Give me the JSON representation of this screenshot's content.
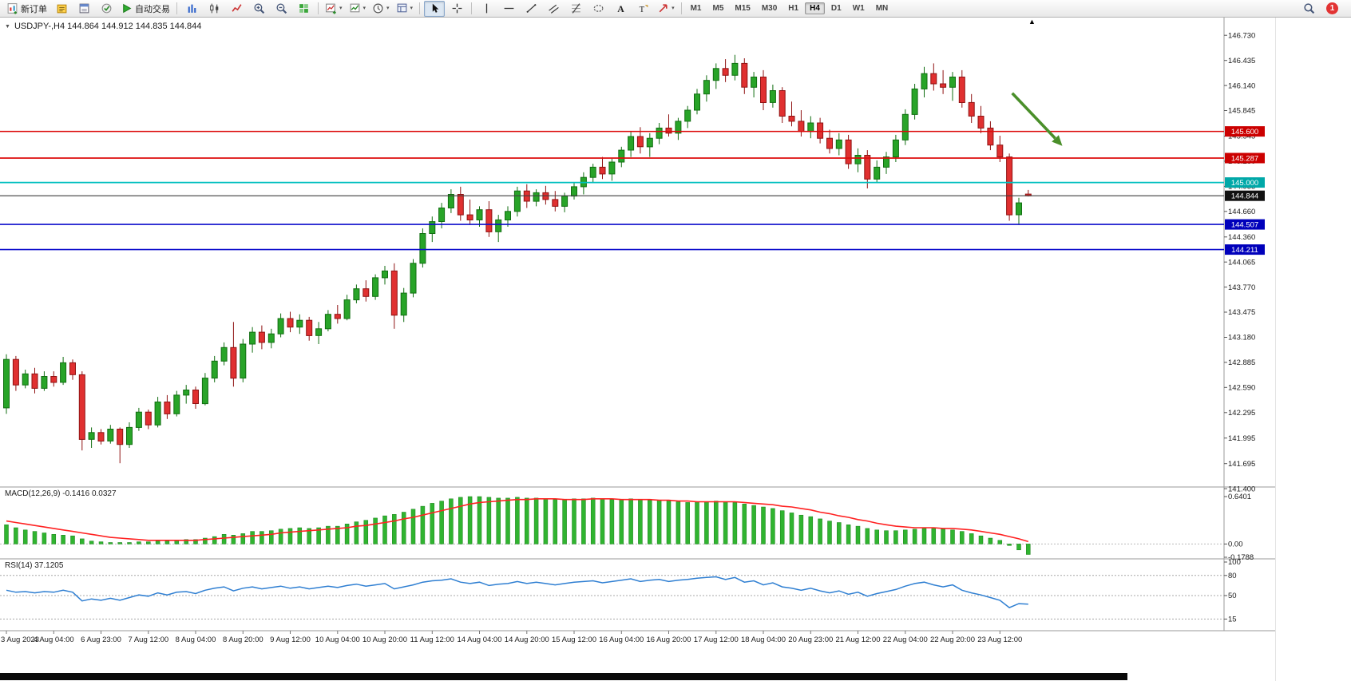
{
  "icons": {
    "collapse": "▼",
    "shift": "▲",
    "caret": "▾"
  },
  "toolbar": {
    "notification_count": "1",
    "groups": [
      {
        "buttons": [
          {
            "icon": "new-order-icon",
            "label": "新订单",
            "name": "new-order-button"
          },
          {
            "icon": "market-watch-icon",
            "name": "market-watch-button"
          },
          {
            "icon": "data-window-icon",
            "name": "data-window-button"
          },
          {
            "icon": "terminal-icon",
            "name": "terminal-button"
          },
          {
            "icon": "autotrade-icon",
            "label": "自动交易",
            "name": "autotrade-button"
          }
        ]
      },
      {
        "buttons": [
          {
            "icon": "bar-chart-icon",
            "name": "bar-chart-button"
          },
          {
            "icon": "candlestick-icon",
            "name": "candlestick-button"
          },
          {
            "icon": "line-chart-icon",
            "name": "line-chart-button"
          },
          {
            "icon": "zoom-in-icon",
            "name": "zoom-in-button"
          },
          {
            "icon": "zoom-out-icon",
            "name": "zoom-out-button"
          },
          {
            "icon": "tile-windows-icon",
            "name": "tile-windows-button"
          }
        ]
      },
      {
        "buttons": [
          {
            "icon": "new-chart-icon",
            "name": "new-chart-button",
            "dropdown": true
          },
          {
            "icon": "indicators-icon",
            "name": "indicators-button",
            "dropdown": true
          },
          {
            "icon": "periods-icon",
            "name": "periods-button",
            "dropdown": true
          },
          {
            "icon": "templates-icon",
            "name": "templates-button",
            "dropdown": true
          }
        ]
      },
      {
        "buttons": [
          {
            "icon": "cursor-icon",
            "name": "cursor-button",
            "active": true
          },
          {
            "icon": "crosshair-icon",
            "name": "crosshair-button"
          }
        ]
      },
      {
        "buttons": [
          {
            "icon": "vertical-line-icon",
            "name": "vertical-line-button"
          },
          {
            "icon": "horizontal-line-icon",
            "name": "horizontal-line-button"
          },
          {
            "icon": "trendline-icon",
            "name": "trendline-button"
          },
          {
            "icon": "channel-icon",
            "name": "equidistant-channel-button"
          },
          {
            "icon": "fibonacci-icon",
            "name": "fibonacci-button"
          },
          {
            "icon": "shapes-icon",
            "name": "shapes-button"
          },
          {
            "icon": "text-icon",
            "name": "text-button"
          },
          {
            "icon": "label-icon",
            "name": "text-label-button"
          },
          {
            "icon": "arrows-icon",
            "name": "arrows-button",
            "dropdown": true
          }
        ]
      },
      {
        "timeframes": [
          "M1",
          "M5",
          "M15",
          "M30",
          "H1",
          "H4",
          "D1",
          "W1",
          "MN"
        ],
        "active": "H4"
      }
    ]
  },
  "chart": {
    "title": "USDJPY-,H4 144.864 144.912 144.835 144.844"
  },
  "chart_data": {
    "type": "candlestick",
    "symbol": "USDJPY-",
    "period": "H4",
    "current_candle": {
      "open": 144.864,
      "high": 144.912,
      "low": 144.835,
      "close": 144.844
    },
    "price_axis_ticks": [
      "146.730",
      "146.435",
      "146.140",
      "145.845",
      "145.545",
      "145.250",
      "144.955",
      "144.660",
      "144.360",
      "144.065",
      "143.770",
      "143.475",
      "143.180",
      "142.885",
      "142.590",
      "142.295",
      "141.995",
      "141.695",
      "141.400"
    ],
    "hlines": [
      {
        "price": 145.6,
        "label": "145.600",
        "color": "#dd0b0b",
        "badge": "#cc0000",
        "w": 1.5
      },
      {
        "price": 145.287,
        "label": "145.287",
        "color": "#dd0b0b",
        "badge": "#cc0000",
        "w": 1.8
      },
      {
        "price": 145.0,
        "label": "145.000",
        "color": "#00bfbf",
        "badge": "#00a8a8",
        "w": 1.8
      },
      {
        "price": 144.844,
        "label": "144.844",
        "color": "#3c3c3c",
        "badge": "#111111",
        "w": 1.1
      },
      {
        "price": 144.507,
        "label": "144.507",
        "color": "#0d0dcc",
        "badge": "#0000bb",
        "w": 1.6
      },
      {
        "price": 144.211,
        "label": "144.211",
        "color": "#0d0dcc",
        "badge": "#0000bb",
        "w": 1.6
      }
    ],
    "x_labels": [
      "3 Aug 2023",
      "4 Aug 04:00",
      "6 Aug 23:00",
      "7 Aug 12:00",
      "8 Aug 04:00",
      "8 Aug 20:00",
      "9 Aug 12:00",
      "10 Aug 04:00",
      "10 Aug 20:00",
      "11 Aug 12:00",
      "14 Aug 04:00",
      "14 Aug 20:00",
      "15 Aug 12:00",
      "16 Aug 04:00",
      "16 Aug 20:00",
      "17 Aug 12:00",
      "18 Aug 04:00",
      "20 Aug 23:00",
      "21 Aug 12:00",
      "22 Aug 04:00",
      "22 Aug 20:00",
      "23 Aug 12:00"
    ],
    "x_label_every": 5,
    "candles": [
      [
        142.35,
        142.98,
        142.28,
        142.92
      ],
      [
        142.92,
        142.96,
        142.55,
        142.62
      ],
      [
        142.62,
        142.8,
        142.58,
        142.75
      ],
      [
        142.75,
        142.82,
        142.52,
        142.58
      ],
      [
        142.58,
        142.78,
        142.55,
        142.72
      ],
      [
        142.72,
        142.78,
        142.6,
        142.65
      ],
      [
        142.65,
        142.95,
        142.62,
        142.88
      ],
      [
        142.88,
        142.92,
        142.68,
        142.74
      ],
      [
        142.74,
        142.78,
        141.85,
        141.98
      ],
      [
        141.98,
        142.12,
        141.88,
        142.06
      ],
      [
        142.06,
        142.1,
        141.92,
        141.96
      ],
      [
        141.96,
        142.15,
        141.93,
        142.1
      ],
      [
        142.1,
        142.12,
        141.7,
        141.92
      ],
      [
        141.92,
        142.18,
        141.88,
        142.12
      ],
      [
        142.12,
        142.35,
        142.08,
        142.3
      ],
      [
        142.3,
        142.33,
        142.1,
        142.15
      ],
      [
        142.15,
        142.48,
        142.12,
        142.42
      ],
      [
        142.42,
        142.5,
        142.22,
        142.28
      ],
      [
        142.28,
        142.55,
        142.25,
        142.5
      ],
      [
        142.5,
        142.62,
        142.4,
        142.56
      ],
      [
        142.56,
        142.6,
        142.34,
        142.4
      ],
      [
        142.4,
        142.76,
        142.38,
        142.7
      ],
      [
        142.7,
        142.96,
        142.65,
        142.9
      ],
      [
        142.9,
        143.12,
        142.85,
        143.06
      ],
      [
        143.06,
        143.36,
        142.6,
        142.7
      ],
      [
        142.7,
        143.16,
        142.65,
        143.1
      ],
      [
        143.1,
        143.3,
        143.0,
        143.24
      ],
      [
        143.24,
        143.32,
        143.04,
        143.12
      ],
      [
        143.12,
        143.28,
        143.05,
        143.22
      ],
      [
        143.22,
        143.46,
        143.18,
        143.4
      ],
      [
        143.4,
        143.48,
        143.24,
        143.3
      ],
      [
        143.3,
        143.45,
        143.22,
        143.38
      ],
      [
        143.38,
        143.42,
        143.14,
        143.2
      ],
      [
        143.2,
        143.36,
        143.1,
        143.28
      ],
      [
        143.28,
        143.5,
        143.25,
        143.45
      ],
      [
        143.45,
        143.56,
        143.34,
        143.4
      ],
      [
        143.4,
        143.68,
        143.38,
        143.62
      ],
      [
        143.62,
        143.8,
        143.58,
        143.75
      ],
      [
        143.75,
        143.85,
        143.6,
        143.66
      ],
      [
        143.66,
        143.92,
        143.62,
        143.88
      ],
      [
        143.88,
        144.02,
        143.8,
        143.96
      ],
      [
        143.96,
        144.05,
        143.28,
        143.44
      ],
      [
        143.44,
        143.76,
        143.36,
        143.7
      ],
      [
        143.7,
        144.1,
        143.65,
        144.05
      ],
      [
        144.05,
        144.46,
        144.0,
        144.4
      ],
      [
        144.4,
        144.6,
        144.3,
        144.54
      ],
      [
        144.54,
        144.76,
        144.46,
        144.7
      ],
      [
        144.7,
        144.92,
        144.64,
        144.86
      ],
      [
        144.86,
        144.95,
        144.55,
        144.62
      ],
      [
        144.62,
        144.8,
        144.5,
        144.56
      ],
      [
        144.56,
        144.72,
        144.48,
        144.68
      ],
      [
        144.68,
        144.78,
        144.36,
        144.42
      ],
      [
        144.42,
        144.62,
        144.3,
        144.56
      ],
      [
        144.56,
        144.72,
        144.48,
        144.66
      ],
      [
        144.66,
        144.95,
        144.6,
        144.9
      ],
      [
        144.9,
        144.98,
        144.7,
        144.78
      ],
      [
        144.78,
        144.92,
        144.72,
        144.88
      ],
      [
        144.88,
        144.96,
        144.74,
        144.8
      ],
      [
        144.8,
        144.9,
        144.66,
        144.72
      ],
      [
        144.72,
        144.88,
        144.65,
        144.84
      ],
      [
        144.84,
        145.0,
        144.8,
        144.95
      ],
      [
        144.95,
        145.12,
        144.86,
        145.06
      ],
      [
        145.06,
        145.22,
        145.0,
        145.18
      ],
      [
        145.18,
        145.3,
        145.04,
        145.1
      ],
      [
        145.1,
        145.28,
        145.02,
        145.24
      ],
      [
        145.24,
        145.42,
        145.18,
        145.38
      ],
      [
        145.38,
        145.6,
        145.3,
        145.54
      ],
      [
        145.54,
        145.65,
        145.34,
        145.42
      ],
      [
        145.42,
        145.58,
        145.3,
        145.52
      ],
      [
        145.52,
        145.7,
        145.45,
        145.64
      ],
      [
        145.64,
        145.8,
        145.54,
        145.58
      ],
      [
        145.58,
        145.76,
        145.5,
        145.72
      ],
      [
        145.72,
        145.9,
        145.64,
        145.85
      ],
      [
        145.85,
        146.1,
        145.8,
        146.04
      ],
      [
        146.04,
        146.26,
        145.95,
        146.2
      ],
      [
        146.2,
        146.4,
        146.1,
        146.34
      ],
      [
        146.34,
        146.45,
        146.18,
        146.26
      ],
      [
        146.26,
        146.5,
        146.2,
        146.4
      ],
      [
        146.4,
        146.46,
        146.04,
        146.12
      ],
      [
        146.12,
        146.3,
        146.0,
        146.24
      ],
      [
        146.24,
        146.32,
        145.85,
        145.94
      ],
      [
        145.94,
        146.15,
        145.88,
        146.08
      ],
      [
        146.08,
        146.12,
        145.7,
        145.78
      ],
      [
        145.78,
        145.95,
        145.66,
        145.72
      ],
      [
        145.72,
        145.85,
        145.54,
        145.6
      ],
      [
        145.6,
        145.78,
        145.52,
        145.7
      ],
      [
        145.7,
        145.76,
        145.46,
        145.52
      ],
      [
        145.52,
        145.62,
        145.34,
        145.4
      ],
      [
        145.4,
        145.58,
        145.32,
        145.5
      ],
      [
        145.5,
        145.56,
        145.16,
        145.22
      ],
      [
        145.22,
        145.4,
        145.12,
        145.32
      ],
      [
        145.32,
        145.38,
        144.93,
        145.04
      ],
      [
        145.04,
        145.26,
        145.0,
        145.18
      ],
      [
        145.18,
        145.36,
        145.1,
        145.3
      ],
      [
        145.3,
        145.56,
        145.24,
        145.5
      ],
      [
        145.5,
        145.86,
        145.44,
        145.8
      ],
      [
        145.8,
        146.16,
        145.74,
        146.1
      ],
      [
        146.1,
        146.36,
        146.0,
        146.28
      ],
      [
        146.28,
        146.4,
        146.08,
        146.16
      ],
      [
        146.16,
        146.32,
        146.04,
        146.12
      ],
      [
        146.12,
        146.3,
        145.96,
        146.24
      ],
      [
        146.24,
        146.32,
        145.88,
        145.94
      ],
      [
        145.94,
        146.04,
        145.7,
        145.78
      ],
      [
        145.78,
        145.9,
        145.58,
        145.64
      ],
      [
        145.64,
        145.72,
        145.38,
        145.44
      ],
      [
        145.44,
        145.55,
        145.24,
        145.3
      ],
      [
        145.3,
        145.34,
        144.55,
        144.62
      ],
      [
        144.62,
        144.82,
        144.5,
        144.76
      ],
      [
        144.864,
        144.912,
        144.835,
        144.844
      ]
    ],
    "arrow": {
      "from": {
        "index": 106.3,
        "price": 146.05
      },
      "to": {
        "index": 111.6,
        "price": 145.43
      }
    },
    "macd": {
      "label": "MACD(12,26,9) -0.1416 0.0327",
      "max": 0.6401,
      "min": -0.1788,
      "axis": [
        "0.6401",
        "0.00",
        "-0.1788"
      ],
      "hist": [
        0.26,
        0.22,
        0.19,
        0.17,
        0.15,
        0.13,
        0.12,
        0.11,
        0.07,
        0.04,
        0.03,
        0.02,
        0.02,
        0.02,
        0.03,
        0.03,
        0.04,
        0.04,
        0.05,
        0.06,
        0.06,
        0.08,
        0.1,
        0.13,
        0.12,
        0.14,
        0.17,
        0.17,
        0.18,
        0.2,
        0.21,
        0.22,
        0.21,
        0.22,
        0.24,
        0.24,
        0.27,
        0.3,
        0.32,
        0.35,
        0.38,
        0.4,
        0.43,
        0.47,
        0.51,
        0.55,
        0.58,
        0.61,
        0.63,
        0.64,
        0.64,
        0.63,
        0.62,
        0.62,
        0.63,
        0.62,
        0.62,
        0.61,
        0.6,
        0.6,
        0.61,
        0.61,
        0.62,
        0.61,
        0.6,
        0.6,
        0.61,
        0.6,
        0.59,
        0.59,
        0.58,
        0.57,
        0.56,
        0.57,
        0.57,
        0.58,
        0.57,
        0.56,
        0.54,
        0.52,
        0.5,
        0.48,
        0.45,
        0.42,
        0.39,
        0.37,
        0.34,
        0.31,
        0.29,
        0.26,
        0.24,
        0.21,
        0.19,
        0.18,
        0.18,
        0.19,
        0.2,
        0.21,
        0.21,
        0.2,
        0.19,
        0.17,
        0.14,
        0.11,
        0.08,
        0.05,
        -0.02,
        -0.08,
        -0.1416
      ],
      "signal": [
        0.31,
        0.29,
        0.27,
        0.25,
        0.23,
        0.21,
        0.19,
        0.17,
        0.15,
        0.13,
        0.11,
        0.09,
        0.08,
        0.07,
        0.06,
        0.05,
        0.05,
        0.05,
        0.05,
        0.05,
        0.05,
        0.06,
        0.07,
        0.08,
        0.09,
        0.1,
        0.11,
        0.12,
        0.13,
        0.15,
        0.16,
        0.17,
        0.18,
        0.19,
        0.2,
        0.21,
        0.22,
        0.24,
        0.25,
        0.27,
        0.29,
        0.31,
        0.34,
        0.36,
        0.39,
        0.42,
        0.45,
        0.48,
        0.51,
        0.54,
        0.56,
        0.57,
        0.58,
        0.59,
        0.6,
        0.6,
        0.61,
        0.61,
        0.61,
        0.6,
        0.6,
        0.6,
        0.61,
        0.61,
        0.61,
        0.6,
        0.6,
        0.6,
        0.6,
        0.59,
        0.59,
        0.58,
        0.58,
        0.57,
        0.57,
        0.57,
        0.57,
        0.57,
        0.56,
        0.55,
        0.54,
        0.53,
        0.51,
        0.5,
        0.48,
        0.46,
        0.43,
        0.41,
        0.38,
        0.36,
        0.33,
        0.31,
        0.28,
        0.26,
        0.24,
        0.23,
        0.22,
        0.22,
        0.22,
        0.21,
        0.21,
        0.2,
        0.19,
        0.17,
        0.15,
        0.13,
        0.1,
        0.07,
        0.0327
      ]
    },
    "rsi": {
      "label": "RSI(14) 37.1205",
      "axis": [
        "100",
        "80",
        "50",
        "15"
      ],
      "levels": [
        80,
        50,
        15
      ],
      "values": [
        58,
        55,
        56,
        54,
        56,
        55,
        58,
        55,
        42,
        45,
        43,
        46,
        43,
        47,
        51,
        49,
        54,
        51,
        55,
        56,
        53,
        58,
        61,
        63,
        57,
        61,
        63,
        60,
        62,
        64,
        61,
        63,
        60,
        62,
        64,
        62,
        65,
        67,
        64,
        66,
        68,
        60,
        63,
        66,
        70,
        72,
        73,
        75,
        70,
        68,
        70,
        65,
        67,
        68,
        71,
        68,
        70,
        68,
        66,
        68,
        70,
        71,
        72,
        69,
        71,
        73,
        75,
        71,
        73,
        74,
        71,
        73,
        74,
        76,
        77,
        78,
        74,
        77,
        70,
        72,
        66,
        69,
        63,
        61,
        58,
        61,
        57,
        54,
        57,
        52,
        55,
        49,
        53,
        56,
        59,
        64,
        68,
        70,
        66,
        63,
        66,
        58,
        54,
        51,
        47,
        43,
        32,
        38,
        37.12
      ]
    },
    "style": {
      "bull": "#28a428",
      "bull_stroke": "#116e11",
      "bear": "#e03030",
      "bear_stroke": "#8f1212",
      "macd_hist": "#30b430",
      "macd_hist_stroke": "#188018",
      "macd_signal": "#ff2222",
      "rsi_line": "#2f7fd2",
      "arrow": "#4a8f2a"
    }
  }
}
